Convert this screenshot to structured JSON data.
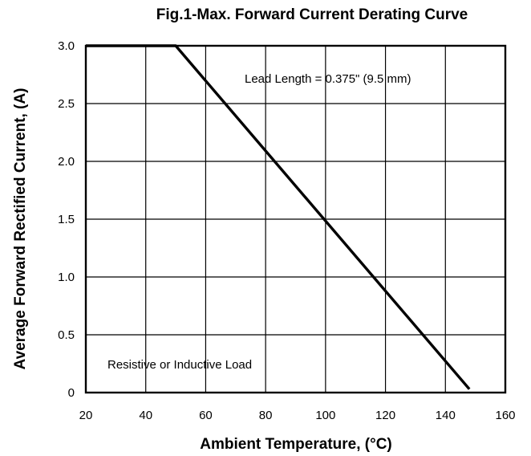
{
  "chart_data": {
    "type": "line",
    "title": "Fig.1-Max. Forward Current Derating Curve",
    "xlabel": "Ambient Temperature, (°C)",
    "ylabel": "Average Forward Rectified Current, (A)",
    "xlim": [
      20,
      160
    ],
    "ylim": [
      0,
      3.0
    ],
    "x_ticks": [
      20,
      40,
      60,
      80,
      100,
      120,
      140,
      160
    ],
    "x_tick_labels": [
      "20",
      "40",
      "60",
      "80",
      "100",
      "120",
      "140",
      "160"
    ],
    "y_ticks": [
      0,
      0.5,
      1.0,
      1.5,
      2.0,
      2.5,
      3.0
    ],
    "y_tick_labels": [
      "0",
      "0.5",
      "1.0",
      "1.5",
      "2.0",
      "2.5",
      "3.0"
    ],
    "grid": true,
    "series": [
      {
        "x": [
          20,
          50,
          148
        ],
        "y": [
          3.0,
          3.0,
          0.03
        ]
      }
    ],
    "annotations": [
      {
        "text": "Lead Length = 0.375\" (9.5 mm)"
      },
      {
        "text": "Resistive or Inductive Load"
      }
    ]
  }
}
